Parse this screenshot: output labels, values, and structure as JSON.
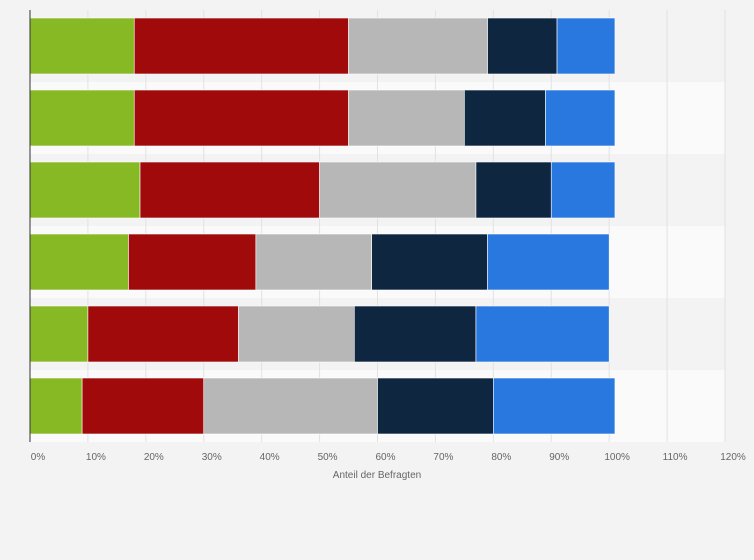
{
  "chart_data": {
    "type": "bar",
    "orientation": "horizontal",
    "stacked": true,
    "xlabel": "Anteil der Befragten",
    "xlim": [
      0,
      120
    ],
    "x_ticks": [
      "0%",
      "10%",
      "20%",
      "30%",
      "40%",
      "50%",
      "60%",
      "70%",
      "80%",
      "90%",
      "100%",
      "110%",
      "120%"
    ],
    "grid": true,
    "legend": "none",
    "row_count": 6,
    "series": [
      {
        "color": "#86b924",
        "values": [
          18,
          18,
          19,
          17,
          10,
          9
        ]
      },
      {
        "color": "#a10a0a",
        "values": [
          37,
          37,
          31,
          22,
          26,
          21
        ]
      },
      {
        "color": "#b7b7b7",
        "values": [
          24,
          20,
          27,
          20,
          20,
          30
        ]
      },
      {
        "color": "#0e2640",
        "values": [
          12,
          14,
          13,
          20,
          21,
          20
        ]
      },
      {
        "color": "#2878e0",
        "values": [
          10,
          12,
          11,
          21,
          23,
          21
        ]
      }
    ]
  }
}
